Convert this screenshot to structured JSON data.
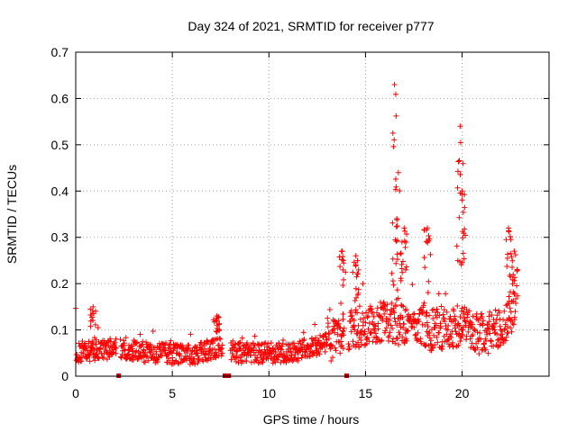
{
  "chart_data": {
    "type": "scatter",
    "title": "Day 324 of 2021, SRMTID for receiver p777",
    "xlabel": "GPS time / hours",
    "ylabel": "SRMTID / TECUs",
    "xlim": [
      0,
      24.5
    ],
    "ylim": [
      0,
      0.7
    ],
    "xticks": [
      0,
      5,
      10,
      15,
      20
    ],
    "yticks": [
      0,
      0.1,
      0.2,
      0.3,
      0.4,
      0.5,
      0.6,
      0.7
    ],
    "ytick_labels": [
      "0",
      "0.1",
      "0.2",
      "0.3",
      "0.4",
      "0.5",
      "0.6",
      "0.7"
    ],
    "grid": true,
    "marker": "+",
    "color": "#ff0000",
    "flag_color": "#cc0000",
    "time_range_hours": [
      0.0,
      22.8
    ],
    "flags_at_zero_hours": [
      2.2,
      7.7,
      7.9,
      14.0
    ],
    "data": {
      "baseline": [
        [
          0,
          0.05
        ],
        [
          2,
          0.06
        ],
        [
          4,
          0.05
        ],
        [
          6,
          0.045
        ],
        [
          7.5,
          0.065
        ],
        [
          8,
          0.05
        ],
        [
          10,
          0.05
        ],
        [
          11,
          0.05
        ],
        [
          12.5,
          0.065
        ],
        [
          13.5,
          0.08
        ],
        [
          14,
          0.1
        ],
        [
          15,
          0.11
        ],
        [
          16,
          0.12
        ],
        [
          17,
          0.11
        ],
        [
          18,
          0.1
        ],
        [
          19,
          0.1
        ],
        [
          20,
          0.11
        ],
        [
          21,
          0.09
        ],
        [
          22,
          0.1
        ],
        [
          22.8,
          0.15
        ]
      ],
      "gaps_hours": [
        [
          2.1,
          2.3
        ],
        [
          7.6,
          8.0
        ],
        [
          13.9,
          14.1
        ]
      ],
      "spikes": [
        [
          0.9,
          0.15
        ],
        [
          7.3,
          0.13
        ],
        [
          13.8,
          0.27
        ],
        [
          14.5,
          0.26
        ],
        [
          16.5,
          0.63
        ],
        [
          16.7,
          0.44
        ],
        [
          17.0,
          0.32
        ],
        [
          18.2,
          0.32
        ],
        [
          19.9,
          0.54
        ],
        [
          20.0,
          0.4
        ],
        [
          22.4,
          0.32
        ],
        [
          22.7,
          0.27
        ]
      ]
    }
  }
}
